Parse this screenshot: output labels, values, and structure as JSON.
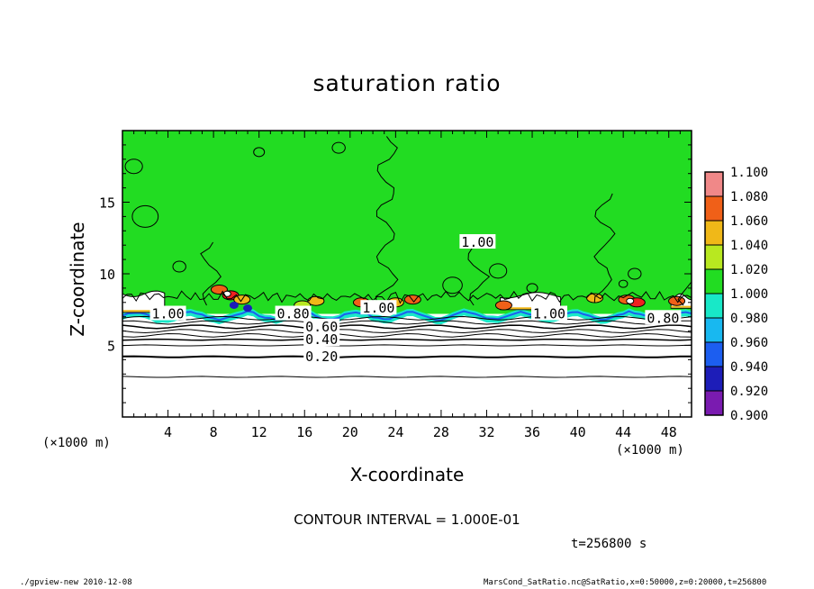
{
  "chart_data": {
    "type": "heatmap",
    "title": "saturation ratio",
    "xlabel": "X-coordinate",
    "ylabel": "Z-coordinate",
    "x_unit_left": "(×1000 m)",
    "x_unit_right": "(×1000 m)",
    "xlim": [
      0,
      50
    ],
    "ylim": [
      0,
      20
    ],
    "xticks": [
      4,
      8,
      12,
      16,
      20,
      24,
      28,
      32,
      36,
      40,
      44,
      48
    ],
    "xtick_labels": [
      "4",
      "8",
      "12",
      "16",
      "20",
      "24",
      "28",
      "32",
      "36",
      "40",
      "44",
      "48"
    ],
    "yticks": [
      5,
      10,
      15
    ],
    "ytick_labels": [
      "5",
      "10",
      "15"
    ],
    "colorbar": {
      "levels": [
        0.9,
        0.92,
        0.94,
        0.96,
        0.98,
        1.0,
        1.02,
        1.04,
        1.06,
        1.08,
        1.1
      ],
      "labels": [
        "0.900",
        "0.920",
        "0.940",
        "0.960",
        "0.980",
        "1.000",
        "1.020",
        "1.040",
        "1.060",
        "1.080",
        "1.100"
      ],
      "colors": [
        "#7a1bb0",
        "#1d1db8",
        "#1c5ef0",
        "#18b8f0",
        "#18e8c8",
        "#22dc22",
        "#b8e820",
        "#f0b818",
        "#f06018",
        "#f02020",
        "#f08888"
      ]
    },
    "contour_labels": [
      {
        "text": "1.00",
        "x": 4.0,
        "y": 7.2
      },
      {
        "text": "0.80",
        "x": 15.0,
        "y": 7.2
      },
      {
        "text": "0.60",
        "x": 17.5,
        "y": 6.3
      },
      {
        "text": "0.40",
        "x": 17.5,
        "y": 5.4
      },
      {
        "text": "0.20",
        "x": 17.5,
        "y": 4.2
      },
      {
        "text": "1.00",
        "x": 22.5,
        "y": 7.6
      },
      {
        "text": "1.00",
        "x": 31.2,
        "y": 12.2
      },
      {
        "text": "1.00",
        "x": 37.5,
        "y": 7.2
      },
      {
        "text": "0.80",
        "x": 47.5,
        "y": 6.9
      }
    ],
    "contour_levels": [
      0.2,
      0.3,
      0.4,
      0.5,
      0.6,
      0.7,
      0.8,
      0.9,
      1.0
    ],
    "contour_interval": "CONTOUR INTERVAL = 1.000E-01",
    "time": "t=256800 s"
  },
  "footer": {
    "left": "./gpview-new   2010-12-08",
    "right": "MarsCond_SatRatio.nc@SatRatio,x=0:50000,z=0:20000,t=256800"
  }
}
